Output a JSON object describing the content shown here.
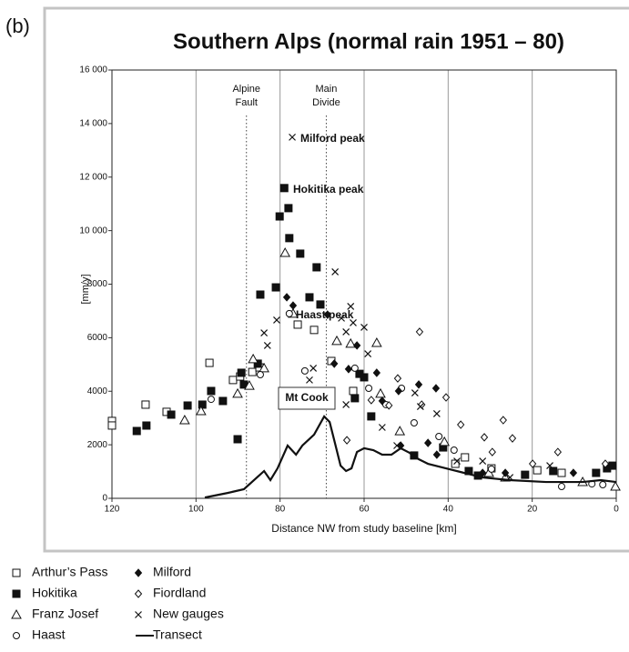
{
  "chart_data": {
    "type": "scatter",
    "panel": "(b)",
    "title": "Southern Alps (normal rain 1951 – 80)",
    "x_label": "Distance NW from study baseline  [km]",
    "y_label": "[mm/y]",
    "xlim": [
      120,
      0
    ],
    "ylim": [
      0,
      16000
    ],
    "xticks": [
      120,
      100,
      80,
      60,
      40,
      20,
      0
    ],
    "yticks": [
      0,
      2000,
      4000,
      6000,
      8000,
      {
        "value": 10000,
        "label": "10 000"
      },
      {
        "value": 12000,
        "label": "12 000"
      },
      {
        "value": 14000,
        "label": "14 000"
      },
      {
        "value": 16000,
        "label": "16 000"
      }
    ],
    "grid": "x",
    "vlines": [
      {
        "x": 88,
        "label": [
          "Alpine",
          "Fault"
        ]
      },
      {
        "x": 69,
        "label": [
          "Main",
          "Divide"
        ]
      }
    ],
    "annotations": [
      "Milford peak",
      "Hokitika peak",
      "Haast peak",
      "Mt Cook"
    ],
    "series": [
      {
        "name": "Arthur’s Pass",
        "marker": "open-square",
        "color": "#111",
        "x": [
          120,
          120,
          112,
          107,
          96.8,
          91.2,
          89.5,
          86.6,
          84.9,
          75.8,
          71.9,
          67.8,
          62.6,
          38.3,
          36,
          29.7,
          18.8,
          13
        ],
        "values": [
          2890,
          2720,
          3500,
          3230,
          5060,
          4420,
          4550,
          4720,
          4890,
          6490,
          6290,
          5130,
          4010,
          1290,
          1530,
          1120,
          1050,
          950
        ]
      },
      {
        "name": "Hokitika",
        "marker": "filled-square",
        "color": "#111",
        "x": [
          114.1,
          111.8,
          105.9,
          102,
          98.5,
          96.4,
          93.6,
          90.1,
          89.2,
          88.6,
          85.3,
          84.7,
          81,
          80.1,
          79,
          78,
          77.8,
          75.2,
          73,
          71.3,
          70.4,
          62.2,
          61.1,
          60,
          58.3,
          48.1,
          41.2,
          35.1,
          32.9,
          21.7,
          15,
          4.8,
          2.2,
          0.9
        ],
        "values": [
          2515,
          2718,
          3126,
          3466,
          3500,
          4010,
          3636,
          2208,
          4690,
          4250,
          5030,
          7610,
          7880,
          10530,
          11590,
          10840,
          9720,
          9140,
          7510,
          8630,
          7240,
          3740,
          4650,
          4520,
          3060,
          1600,
          1900,
          1020,
          850,
          880,
          1020,
          950,
          1120,
          1220
        ]
      },
      {
        "name": "Franz Josef",
        "marker": "open-triangle",
        "color": "#111",
        "x": [
          102.7,
          98.8,
          90.1,
          87.3,
          86.4,
          83.8,
          78.8,
          76.9,
          66.5,
          63.2,
          57,
          56.1,
          51.5,
          40.9,
          30.3,
          26.4,
          8,
          0.2
        ],
        "values": [
          2920,
          3260,
          3910,
          4210,
          5200,
          4860,
          9170,
          6900,
          5880,
          5780,
          5810,
          3910,
          2510,
          2110,
          950,
          780,
          610,
          440
        ]
      },
      {
        "name": "Haast",
        "marker": "open-circle",
        "color": "#111",
        "x": [
          96.4,
          84.7,
          77.8,
          74.1,
          62.2,
          58.9,
          54.8,
          51.1,
          48.1,
          42.2,
          38.6,
          29.7,
          13,
          5.8,
          3.2
        ],
        "values": [
          3700,
          4620,
          6900,
          4760,
          4860,
          4110,
          3500,
          4110,
          2820,
          2310,
          1800,
          1090,
          440,
          540,
          510
        ]
      },
      {
        "name": "Milford",
        "marker": "filled-diamond",
        "color": "#111",
        "x": [
          78.4,
          76.9,
          68.7,
          67.1,
          63.7,
          61.7,
          57,
          55.7,
          51.8,
          47,
          42.9,
          51.3,
          44.8,
          42.7,
          31.8,
          26.4,
          10.2
        ],
        "values": [
          7510,
          7200,
          6860,
          5030,
          4830,
          5710,
          4690,
          3640,
          4010,
          4250,
          4110,
          1970,
          2070,
          1630,
          950,
          950,
          950
        ]
      },
      {
        "name": "Fiordland",
        "marker": "open-diamond",
        "color": "#111",
        "x": [
          64.1,
          58.3,
          54.1,
          52,
          46.8,
          46.3,
          40.5,
          37,
          26.9,
          24.7,
          31.4,
          29.5,
          19.9,
          13.9,
          2.6
        ],
        "values": [
          2170,
          3670,
          3470,
          4480,
          6220,
          3500,
          3770,
          2750,
          2920,
          2240,
          2280,
          1730,
          1290,
          1730,
          1290
        ]
      },
      {
        "name": "New gauges",
        "marker": "cross",
        "color": "#111",
        "x": [
          77.1,
          83.8,
          83,
          80.8,
          73,
          72.1,
          66.9,
          65.4,
          64.3,
          63.2,
          62.6,
          60,
          59.1,
          64.3,
          55.7,
          52.2,
          47.9,
          46.6,
          42.7,
          37.9,
          31.8,
          25.3,
          15.8
        ],
        "values": [
          13490,
          6180,
          5710,
          6660,
          4420,
          4860,
          8460,
          6730,
          6220,
          7170,
          6560,
          6390,
          5400,
          3500,
          2650,
          1970,
          3940,
          3430,
          3160,
          1390,
          1390,
          780,
          1220
        ]
      },
      {
        "name": "Transect",
        "marker": "line",
        "color": "#111",
        "x": [
          97.9,
          92.5,
          88.6,
          85.5,
          83.8,
          82.3,
          80.6,
          78.2,
          76.2,
          74.7,
          71.9,
          69.5,
          68.2,
          66.9,
          65.6,
          64.3,
          63,
          61.7,
          60,
          57.8,
          55.7,
          53.5,
          51.3,
          49.2,
          47,
          44.8,
          40.5,
          36.2,
          31.8,
          25.3,
          16.7,
          8,
          3.7,
          0
        ],
        "values": [
          30,
          200,
          340,
          780,
          1020,
          680,
          1120,
          1970,
          1630,
          1970,
          2380,
          3060,
          2850,
          2040,
          1220,
          1020,
          1120,
          1730,
          1870,
          1800,
          1630,
          1630,
          1870,
          1700,
          1460,
          1290,
          1120,
          950,
          780,
          680,
          610,
          610,
          680,
          610
        ]
      }
    ]
  }
}
